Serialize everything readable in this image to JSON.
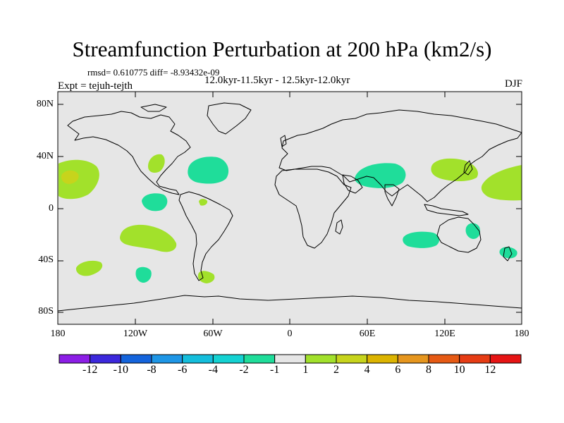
{
  "title": "Streamfunction Perturbation at 200 hPa (km2/s)",
  "stats": "rmsd= 0.610775 diff= -8.93432e-09",
  "period": "12.0kyr-11.5kyr - 12.5kyr-12.0kyr",
  "experiment": "Expt = tejuh-tejth",
  "season": "DJF",
  "map": {
    "lat_labels": [
      "80N",
      "40N",
      "0",
      "40S",
      "80S"
    ],
    "lon_labels": [
      "180",
      "120W",
      "60W",
      "0",
      "60E",
      "120E",
      "180"
    ],
    "background_color": "#e6e6e6",
    "patches": [
      {
        "name": "patch-central-pacific-north",
        "level": "2",
        "color": "#a2e12b"
      },
      {
        "name": "patch-hawaii-core",
        "level": "4",
        "color": "#c7d41c"
      },
      {
        "name": "patch-mexico",
        "level": "2",
        "color": "#a2e12b"
      },
      {
        "name": "patch-north-atlantic",
        "level": "-1",
        "color": "#1fdd9a"
      },
      {
        "name": "patch-east-pacific-eq",
        "level": "-1",
        "color": "#1fdd9a"
      },
      {
        "name": "patch-south-america-small",
        "level": "2",
        "color": "#a2e12b"
      },
      {
        "name": "patch-south-pacific",
        "level": "2",
        "color": "#a2e12b"
      },
      {
        "name": "patch-south-pacific-far",
        "level": "2",
        "color": "#a2e12b"
      },
      {
        "name": "patch-south-pacific-small",
        "level": "-1",
        "color": "#1fdd9a"
      },
      {
        "name": "patch-patagonia",
        "level": "2",
        "color": "#a2e12b"
      },
      {
        "name": "patch-arabia-india",
        "level": "-1",
        "color": "#1fdd9a"
      },
      {
        "name": "patch-east-asia",
        "level": "2",
        "color": "#a2e12b"
      },
      {
        "name": "patch-north-pacific-west",
        "level": "2",
        "color": "#a2e12b"
      },
      {
        "name": "patch-south-indian-ocean",
        "level": "-1",
        "color": "#1fdd9a"
      },
      {
        "name": "patch-australia-east",
        "level": "-1",
        "color": "#1fdd9a"
      },
      {
        "name": "patch-new-zealand",
        "level": "-1",
        "color": "#1fdd9a"
      }
    ]
  },
  "colorbar": {
    "colors": [
      "#8c1ee6",
      "#3c28dc",
      "#1464dc",
      "#1e96e6",
      "#14bedc",
      "#14d2d2",
      "#1fdd9a",
      "#e6e6e6",
      "#a2e12b",
      "#c7d41c",
      "#dcb400",
      "#e6961e",
      "#e65a14",
      "#e63c14",
      "#e61414"
    ],
    "labels": [
      "-12",
      "-10",
      "-8",
      "-6",
      "-4",
      "-2",
      "-1",
      "1",
      "2",
      "4",
      "6",
      "8",
      "10",
      "12"
    ]
  }
}
